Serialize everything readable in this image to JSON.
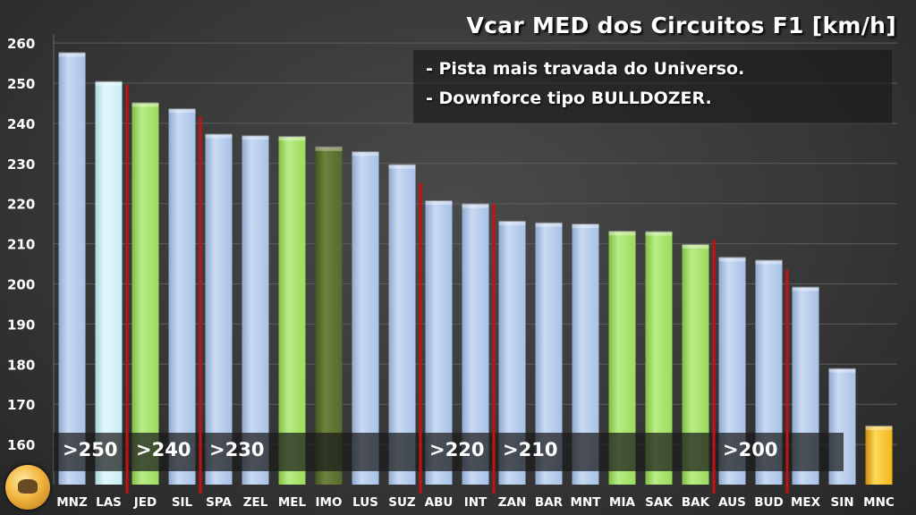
{
  "title": "Vcar MED dos Circuitos F1 [km/h]",
  "notes": [
    "- Pista mais travada do Universo.",
    "- Downforce tipo BULLDOZER."
  ],
  "colors": {
    "bar_default": "#a7c1e6",
    "bar_highlight_light": "#c6ecf3",
    "bar_green": "#9bdb5c",
    "bar_darkgreen": "#56692e",
    "bar_gold": "#f2b81c",
    "divider": "#c81010",
    "band": "#1a1a1a"
  },
  "chart_data": {
    "type": "bar",
    "title": "Vcar MED dos Circuitos F1 [km/h]",
    "xlabel": "",
    "ylabel": "",
    "ylim": [
      150,
      262
    ],
    "yticks": [
      160,
      170,
      180,
      190,
      200,
      210,
      220,
      230,
      240,
      250,
      260
    ],
    "grid": true,
    "categories": [
      "MNZ",
      "LAS",
      "JED",
      "SIL",
      "SPA",
      "ZEL",
      "MEL",
      "IMO",
      "LUS",
      "SUZ",
      "ABU",
      "INT",
      "ZAN",
      "BAR",
      "MNT",
      "MIA",
      "SAK",
      "BAK",
      "AUS",
      "BUD",
      "MEX",
      "SIN",
      "MNC"
    ],
    "values": [
      257.5,
      250.3,
      245,
      243.5,
      237.2,
      236.8,
      236.6,
      234,
      232.8,
      229.6,
      220.6,
      219.8,
      215.5,
      215.1,
      214.8,
      213,
      212.9,
      209.7,
      206.5,
      205.8,
      199.1,
      178.8,
      164.5
    ],
    "bar_colors": [
      "default",
      "light",
      "green",
      "default",
      "default",
      "default",
      "green",
      "darkgreen",
      "default",
      "default",
      "default",
      "default",
      "default",
      "default",
      "default",
      "green",
      "green",
      "green",
      "default",
      "default",
      "default",
      "default",
      "gold"
    ],
    "group_thresholds": [
      {
        "label": ">250",
        "start": 0,
        "end": 1
      },
      {
        "label": ">240",
        "start": 2,
        "end": 3
      },
      {
        "label": ">230",
        "start": 4,
        "end": 9
      },
      {
        "label": ">220",
        "start": 10,
        "end": 11
      },
      {
        "label": ">210",
        "start": 12,
        "end": 17
      },
      {
        "label": ">200",
        "start": 18,
        "end": 19
      }
    ],
    "dividers_after_index": [
      1,
      3,
      9,
      11,
      17,
      19
    ]
  }
}
